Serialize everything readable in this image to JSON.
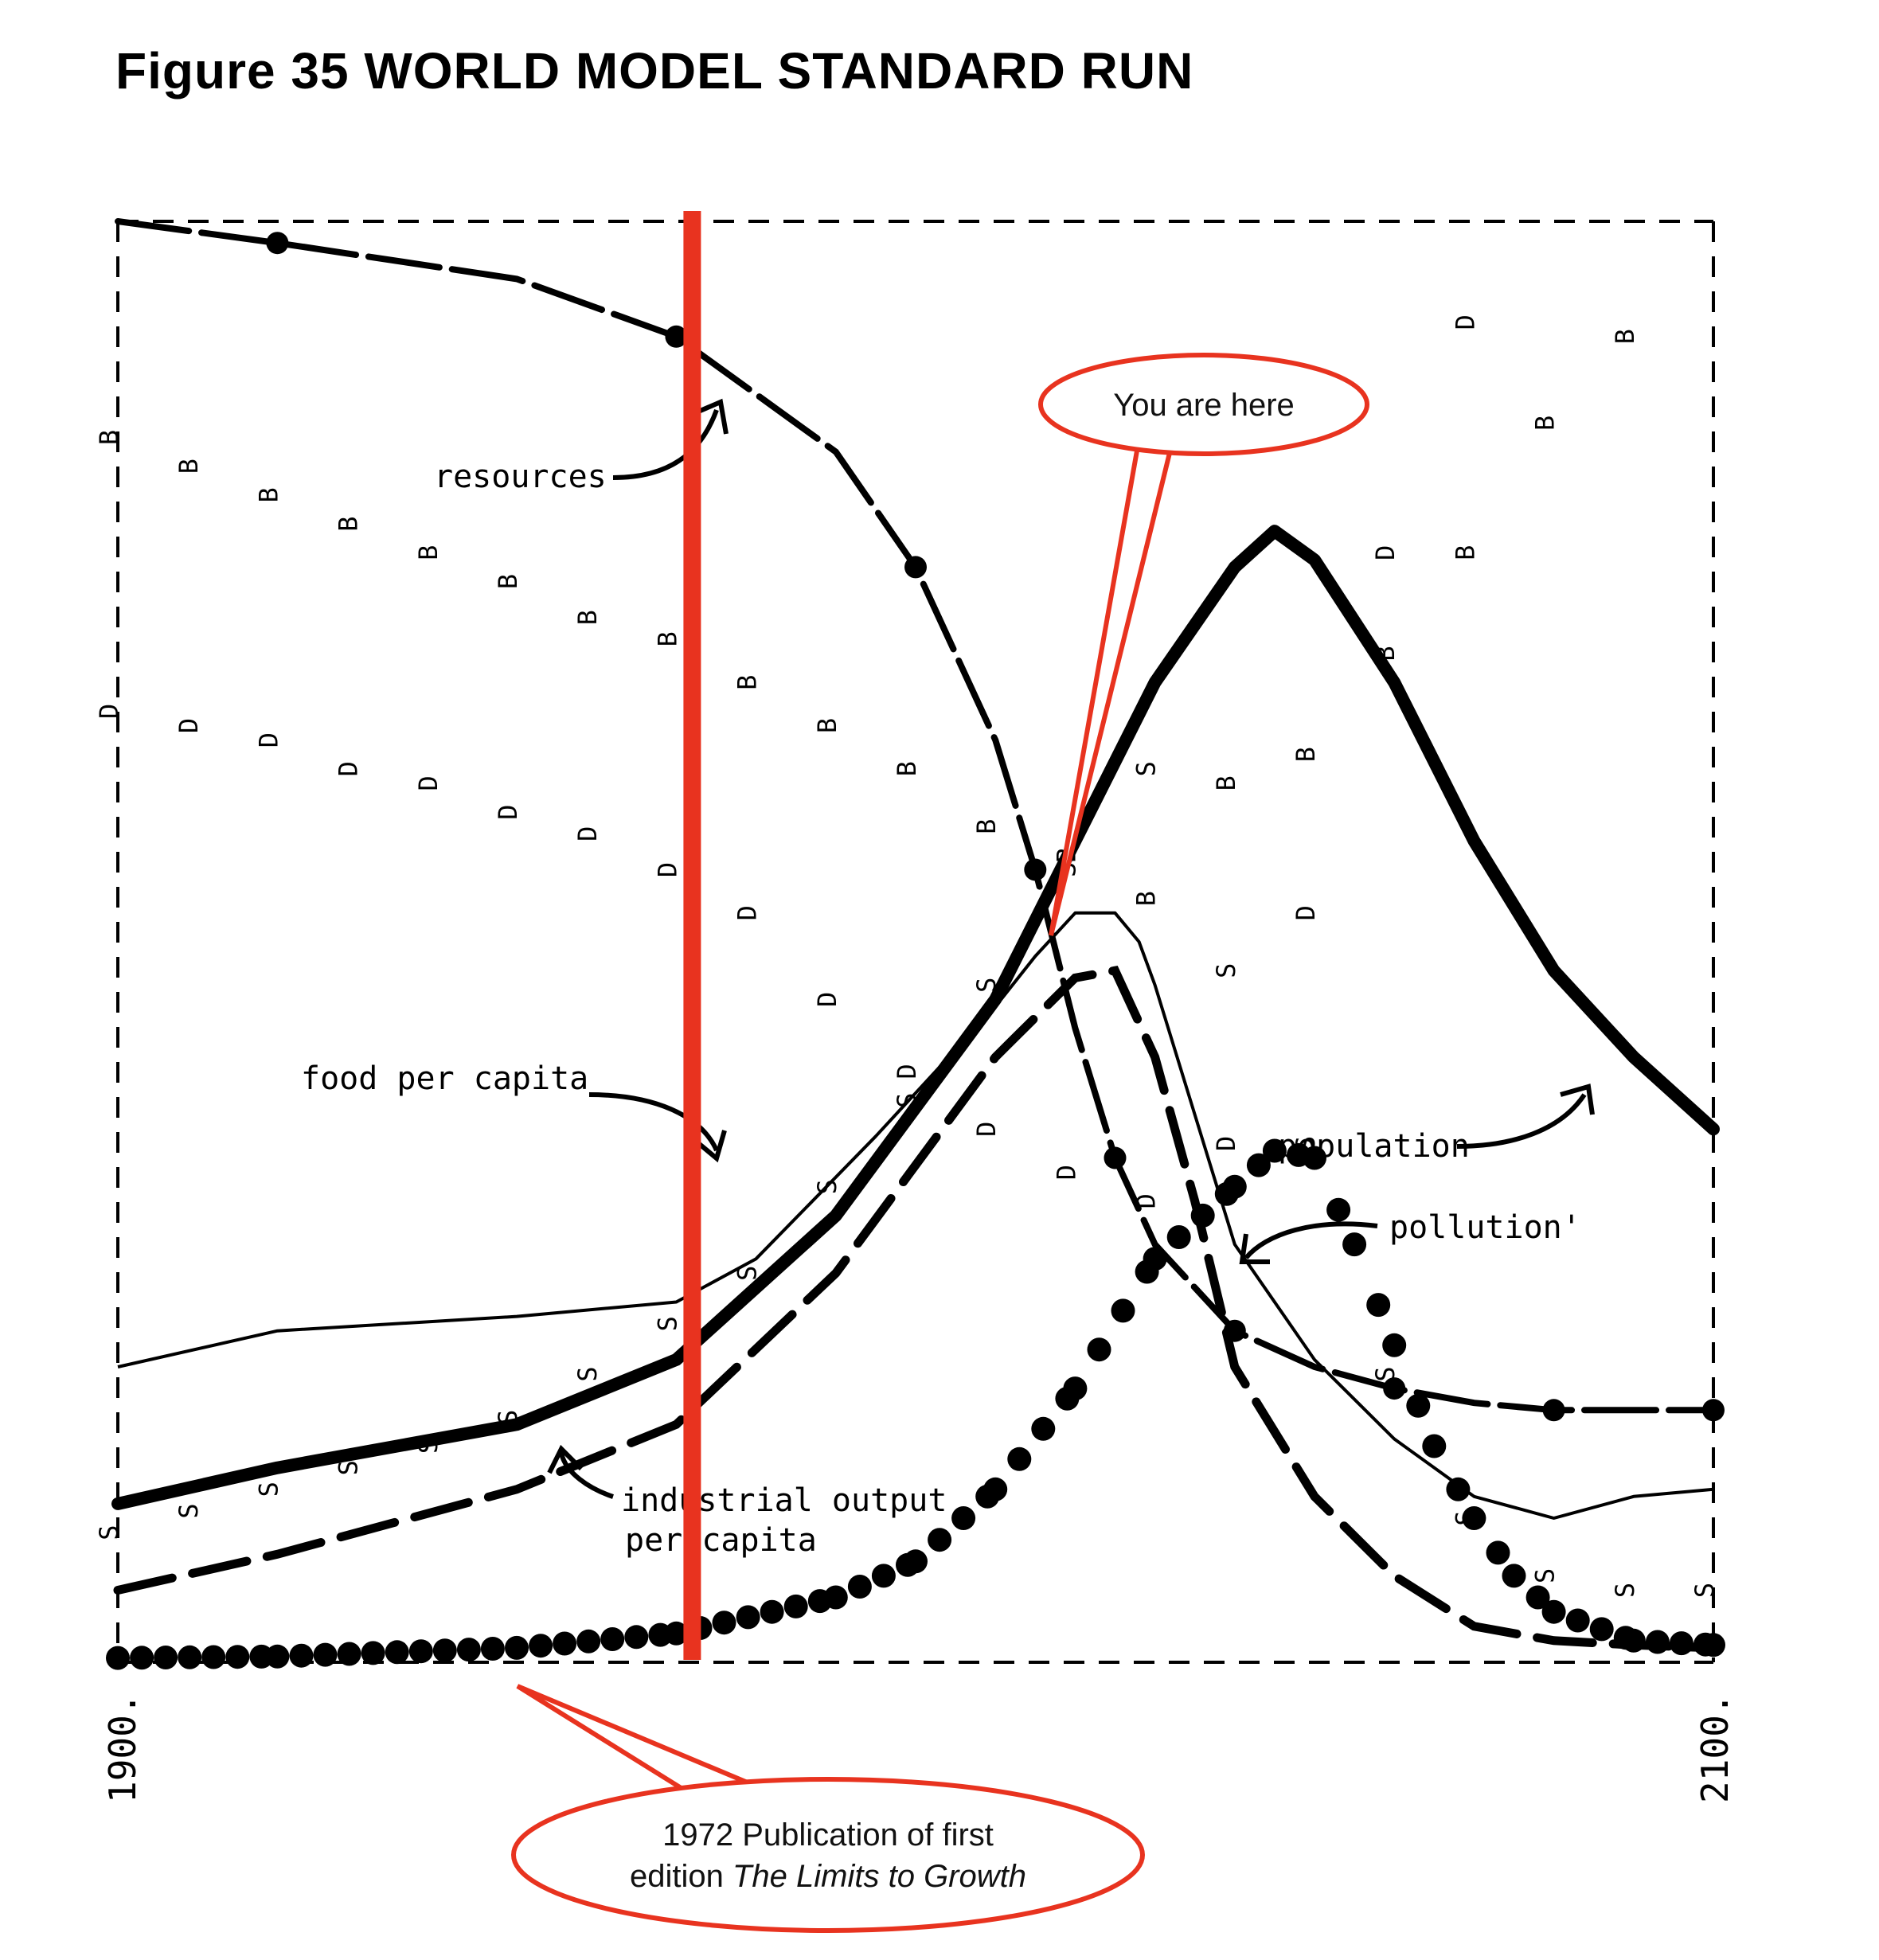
{
  "title": "Figure 35 WORLD MODEL STANDARD RUN",
  "chart_data": {
    "type": "line",
    "title": "Figure 35 WORLD MODEL STANDARD RUN",
    "xlabel": "",
    "ylabel": "",
    "xlim": [
      1900,
      2100
    ],
    "x_tick_labels": [
      "1900.",
      "2100."
    ],
    "ylim": [
      0,
      1
    ],
    "y_scale_note": "",
    "grid": false,
    "legend": "none (inline labels)",
    "series": [
      {
        "name": "resources",
        "line_style": "thick dashed with large dots",
        "points": [
          [
            1900,
            1.0
          ],
          [
            1920,
            0.985
          ],
          [
            1950,
            0.96
          ],
          [
            1970,
            0.92
          ],
          [
            1990,
            0.84
          ],
          [
            2000,
            0.76
          ],
          [
            2010,
            0.64
          ],
          [
            2015,
            0.55
          ],
          [
            2020,
            0.44
          ],
          [
            2025,
            0.35
          ],
          [
            2030,
            0.29
          ],
          [
            2040,
            0.23
          ],
          [
            2050,
            0.205
          ],
          [
            2060,
            0.19
          ],
          [
            2070,
            0.18
          ],
          [
            2080,
            0.175
          ],
          [
            2090,
            0.175
          ],
          [
            2100,
            0.175
          ]
        ]
      },
      {
        "name": "population",
        "line_style": "very thick solid",
        "points": [
          [
            1900,
            0.11
          ],
          [
            1920,
            0.135
          ],
          [
            1950,
            0.165
          ],
          [
            1970,
            0.21
          ],
          [
            1990,
            0.31
          ],
          [
            2010,
            0.46
          ],
          [
            2020,
            0.57
          ],
          [
            2030,
            0.68
          ],
          [
            2040,
            0.76
          ],
          [
            2045,
            0.785
          ],
          [
            2050,
            0.765
          ],
          [
            2060,
            0.68
          ],
          [
            2070,
            0.57
          ],
          [
            2080,
            0.48
          ],
          [
            2090,
            0.42
          ],
          [
            2100,
            0.37
          ]
        ]
      },
      {
        "name": "food per capita",
        "line_style": "thin solid",
        "points": [
          [
            1900,
            0.205
          ],
          [
            1920,
            0.23
          ],
          [
            1950,
            0.24
          ],
          [
            1970,
            0.25
          ],
          [
            1980,
            0.28
          ],
          [
            1995,
            0.365
          ],
          [
            2010,
            0.455
          ],
          [
            2015,
            0.49
          ],
          [
            2020,
            0.52
          ],
          [
            2025,
            0.52
          ],
          [
            2028,
            0.5
          ],
          [
            2030,
            0.47
          ],
          [
            2040,
            0.29
          ],
          [
            2050,
            0.21
          ],
          [
            2060,
            0.155
          ],
          [
            2070,
            0.115
          ],
          [
            2080,
            0.1
          ],
          [
            2090,
            0.115
          ],
          [
            2100,
            0.12
          ]
        ]
      },
      {
        "name": "industrial output per capita",
        "line_style": "thick long-dash",
        "points": [
          [
            1900,
            0.05
          ],
          [
            1920,
            0.075
          ],
          [
            1950,
            0.12
          ],
          [
            1970,
            0.165
          ],
          [
            1990,
            0.27
          ],
          [
            2010,
            0.42
          ],
          [
            2020,
            0.475
          ],
          [
            2025,
            0.48
          ],
          [
            2030,
            0.42
          ],
          [
            2035,
            0.32
          ],
          [
            2040,
            0.205
          ],
          [
            2050,
            0.115
          ],
          [
            2060,
            0.06
          ],
          [
            2070,
            0.025
          ],
          [
            2080,
            0.015
          ],
          [
            2090,
            0.012
          ],
          [
            2100,
            0.01
          ]
        ]
      },
      {
        "name": "pollution",
        "line_style": "large dots",
        "points": [
          [
            1900,
            0.003
          ],
          [
            1920,
            0.004
          ],
          [
            1950,
            0.01
          ],
          [
            1970,
            0.02
          ],
          [
            1990,
            0.045
          ],
          [
            2000,
            0.07
          ],
          [
            2010,
            0.12
          ],
          [
            2020,
            0.19
          ],
          [
            2030,
            0.28
          ],
          [
            2040,
            0.33
          ],
          [
            2045,
            0.355
          ],
          [
            2050,
            0.35
          ],
          [
            2055,
            0.29
          ],
          [
            2060,
            0.22
          ],
          [
            2065,
            0.15
          ],
          [
            2070,
            0.1
          ],
          [
            2075,
            0.06
          ],
          [
            2080,
            0.035
          ],
          [
            2090,
            0.015
          ],
          [
            2100,
            0.012
          ]
        ]
      },
      {
        "name": "B",
        "line_style": "plotted letter B",
        "points": [
          [
            1900,
            0.85
          ],
          [
            1910,
            0.83
          ],
          [
            1920,
            0.81
          ],
          [
            1930,
            0.79
          ],
          [
            1940,
            0.77
          ],
          [
            1950,
            0.75
          ],
          [
            1960,
            0.725
          ],
          [
            1970,
            0.71
          ],
          [
            1980,
            0.68
          ],
          [
            1990,
            0.65
          ],
          [
            2000,
            0.62
          ],
          [
            2010,
            0.58
          ],
          [
            2020,
            0.56
          ],
          [
            2030,
            0.53
          ],
          [
            2040,
            0.61
          ],
          [
            2050,
            0.63
          ],
          [
            2060,
            0.7
          ],
          [
            2070,
            0.77
          ],
          [
            2080,
            0.86
          ],
          [
            2090,
            0.92
          ]
        ]
      },
      {
        "name": "D",
        "line_style": "plotted letter D",
        "points": [
          [
            1900,
            0.66
          ],
          [
            1910,
            0.65
          ],
          [
            1920,
            0.64
          ],
          [
            1930,
            0.62
          ],
          [
            1940,
            0.61
          ],
          [
            1950,
            0.59
          ],
          [
            1960,
            0.575
          ],
          [
            1970,
            0.55
          ],
          [
            1980,
            0.52
          ],
          [
            1990,
            0.46
          ],
          [
            2000,
            0.41
          ],
          [
            2010,
            0.37
          ],
          [
            2020,
            0.34
          ],
          [
            2030,
            0.32
          ],
          [
            2040,
            0.36
          ],
          [
            2050,
            0.52
          ],
          [
            2060,
            0.77
          ],
          [
            2070,
            0.93
          ]
        ]
      },
      {
        "name": "S",
        "line_style": "plotted letter S",
        "points": [
          [
            1900,
            0.09
          ],
          [
            1910,
            0.105
          ],
          [
            1920,
            0.12
          ],
          [
            1930,
            0.135
          ],
          [
            1940,
            0.15
          ],
          [
            1950,
            0.17
          ],
          [
            1960,
            0.2
          ],
          [
            1970,
            0.235
          ],
          [
            1980,
            0.27
          ],
          [
            1990,
            0.33
          ],
          [
            2000,
            0.39
          ],
          [
            2010,
            0.47
          ],
          [
            2020,
            0.55
          ],
          [
            2030,
            0.62
          ],
          [
            2040,
            0.48
          ],
          [
            2050,
            0.36
          ],
          [
            2060,
            0.2
          ],
          [
            2070,
            0.1
          ],
          [
            2080,
            0.06
          ],
          [
            2090,
            0.05
          ],
          [
            2100,
            0.05
          ]
        ]
      }
    ],
    "annotations": [
      {
        "text": "resources",
        "x": 1950,
        "y": 0.82
      },
      {
        "text": "food per capita",
        "x": 1940,
        "y": 0.405
      },
      {
        "text": "industrial output per capita",
        "x": 1976,
        "y": 0.11
      },
      {
        "text": "population",
        "x": 2065,
        "y": 0.36
      },
      {
        "text": "pollution'",
        "x": 2080,
        "y": 0.305
      },
      {
        "text": "1972 Publication of first edition The Limits to Growth",
        "x": 1972
      },
      {
        "text": "You are here",
        "x": 2027
      }
    ],
    "reference_lines": [
      {
        "orientation": "vertical",
        "x": 1972,
        "color": "#e8331f"
      }
    ]
  },
  "labels": {
    "resources": "resources",
    "food_per_capita": "food per capita",
    "industrial_output_line1": "industrial output",
    "industrial_output_line2": "per capita",
    "population": "population",
    "pollution": "pollution'",
    "x_start": "1900.",
    "x_end": "2100."
  },
  "callouts": {
    "you_are_here": "You are here",
    "publication_line1": "1972 Publication of first",
    "publication_line2_prefix": "edition ",
    "publication_line2_italic": "The Limits to Growth"
  },
  "colors": {
    "ink": "#000000",
    "accent": "#e8331f",
    "background": "#ffffff"
  }
}
